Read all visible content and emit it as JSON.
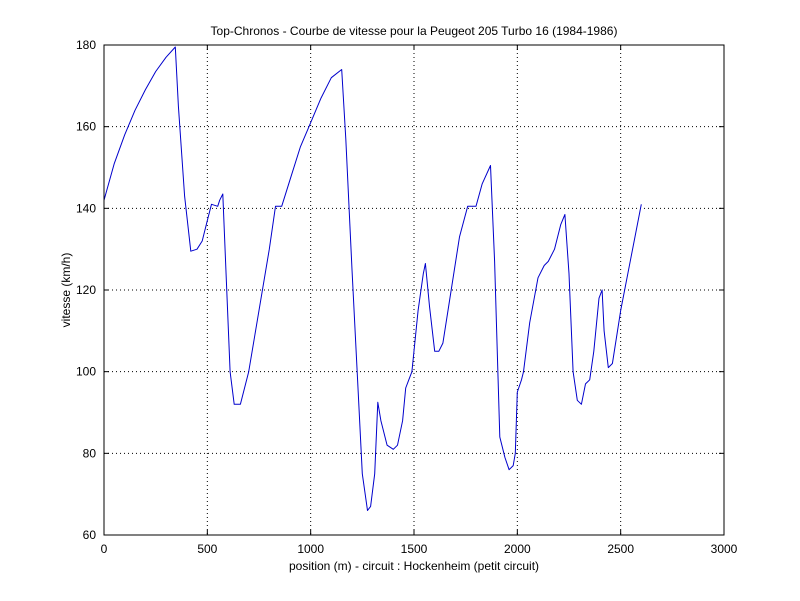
{
  "chart_data": {
    "type": "line",
    "title": "Top-Chronos - Courbe de vitesse pour la Peugeot 205 Turbo 16 (1984-1986)",
    "xlabel": "position (m) - circuit : Hockenheim (petit circuit)",
    "ylabel": "vitesse (km/h)",
    "xlim": [
      0,
      3000
    ],
    "ylim": [
      60,
      180
    ],
    "xticks": [
      0,
      500,
      1000,
      1500,
      2000,
      2500,
      3000
    ],
    "yticks": [
      60,
      80,
      100,
      120,
      140,
      160,
      180
    ],
    "grid": true,
    "series_color": "#0000cc",
    "series": [
      {
        "x": [
          0,
          50,
          100,
          150,
          200,
          250,
          300,
          345,
          360,
          390,
          420,
          450,
          475,
          500,
          520,
          550,
          560,
          575,
          590,
          610,
          630,
          660,
          700,
          750,
          800,
          830,
          860,
          900,
          950,
          1000,
          1050,
          1100,
          1150,
          1170,
          1200,
          1230,
          1250,
          1275,
          1290,
          1310,
          1325,
          1340,
          1370,
          1400,
          1420,
          1445,
          1460,
          1490,
          1520,
          1545,
          1555,
          1575,
          1600,
          1620,
          1640,
          1680,
          1720,
          1760,
          1800,
          1830,
          1870,
          1890,
          1915,
          1940,
          1960,
          1980,
          1990,
          2000,
          2020,
          2030,
          2060,
          2100,
          2130,
          2150,
          2180,
          2210,
          2230,
          2250,
          2270,
          2290,
          2310,
          2330,
          2350,
          2370,
          2395,
          2410,
          2420,
          2440,
          2460,
          2500,
          2550,
          2600
        ],
        "y": [
          142,
          151,
          158,
          164,
          169,
          173.5,
          177,
          179.5,
          165,
          143,
          129.5,
          130,
          132,
          137,
          141,
          140.5,
          142,
          143.5,
          125,
          100,
          92,
          92,
          100,
          115,
          130,
          140.5,
          140.5,
          147,
          155,
          161,
          167,
          172,
          174,
          157,
          125,
          95,
          75,
          66,
          67,
          75,
          92.5,
          88,
          82,
          81,
          82,
          88,
          96,
          100,
          115,
          124,
          126.5,
          116,
          105,
          105,
          107,
          120,
          133,
          140.5,
          140.5,
          146,
          150.5,
          127,
          84,
          79,
          76,
          77,
          80,
          95,
          98,
          100,
          112,
          123,
          126,
          127,
          130,
          136,
          138.5,
          124,
          100,
          93,
          92,
          97,
          98,
          105,
          118,
          120,
          110,
          101,
          102,
          115,
          128,
          141
        ]
      }
    ]
  }
}
